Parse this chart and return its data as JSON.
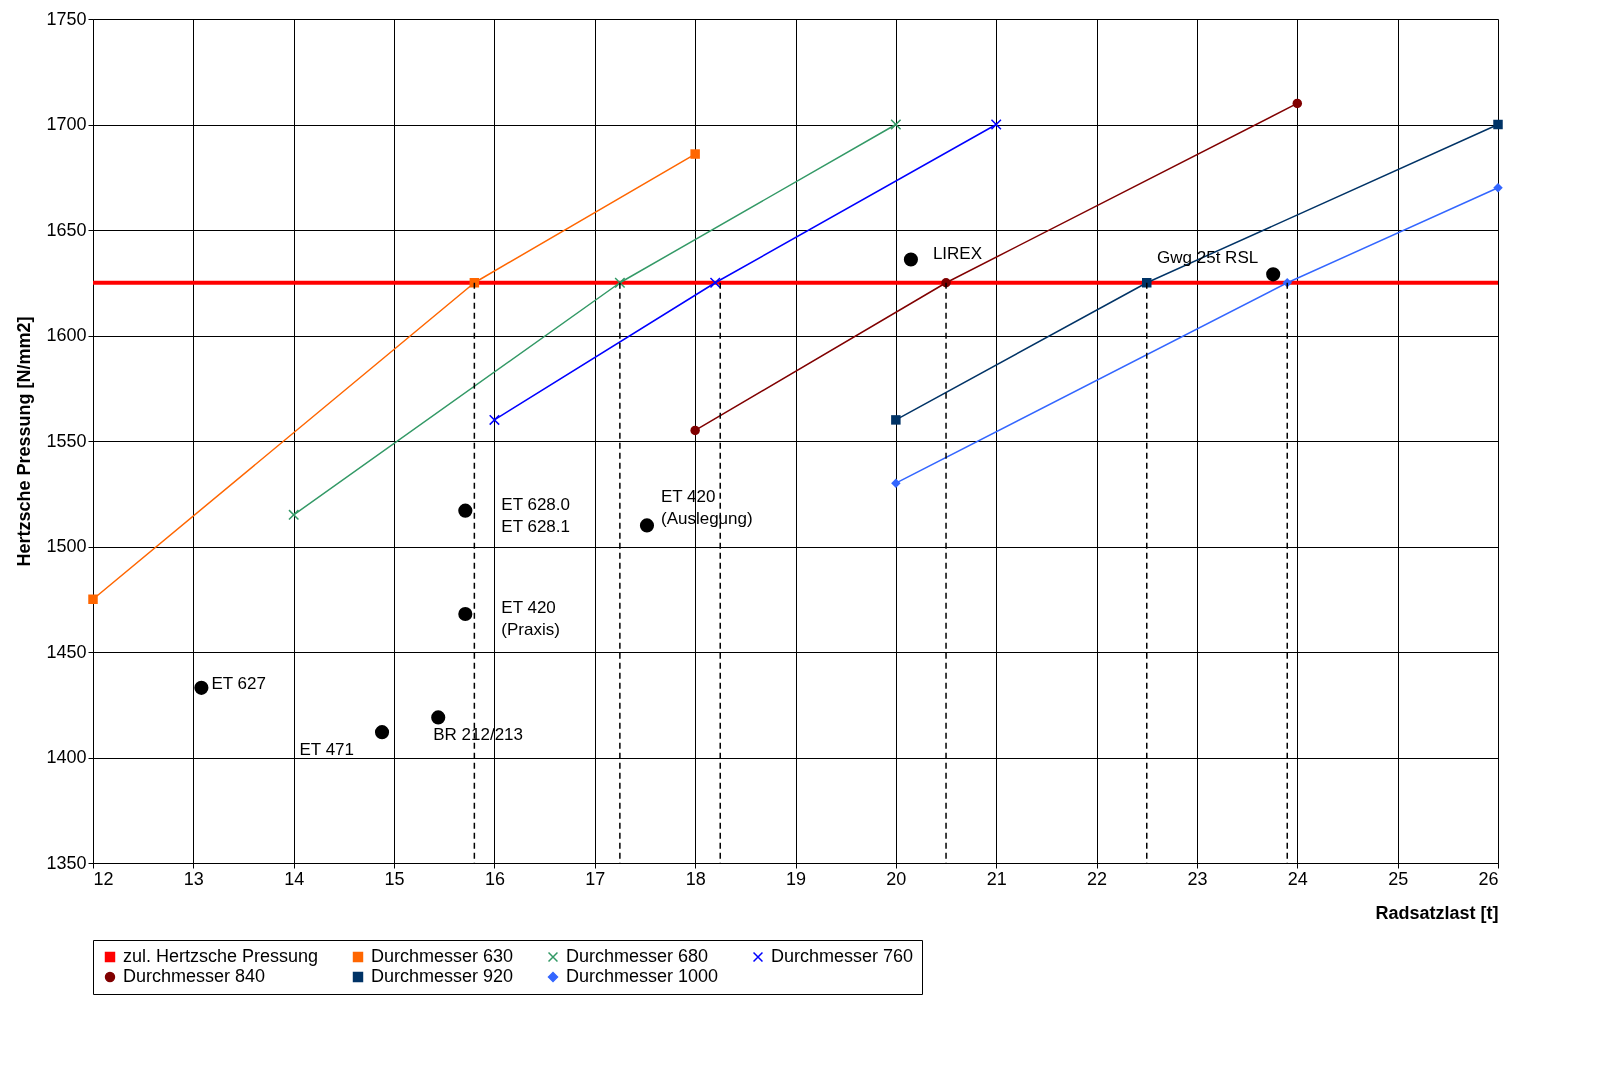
{
  "chart_data": {
    "type": "line",
    "xlabel": "Radsatzlast [t]",
    "ylabel": "Hertzsche Pressung [N/mm2]",
    "xlim": [
      12,
      26
    ],
    "xticks": [
      12,
      13,
      14,
      15,
      16,
      17,
      18,
      19,
      20,
      21,
      22,
      23,
      24,
      25,
      26
    ],
    "ylim": [
      1350,
      1750
    ],
    "yticks": [
      1350,
      1400,
      1450,
      1500,
      1550,
      1600,
      1650,
      1700,
      1750
    ],
    "grid": true,
    "legend": "bottom",
    "line_style": "solid",
    "series": [
      {
        "name": "zul. Hertzsche Pressung",
        "color": "#ff0000",
        "marker": "none",
        "x": [
          12,
          26
        ],
        "values": [
          1625,
          1625
        ]
      },
      {
        "name": "Durchmesser 630",
        "color": "#ff6600",
        "marker": "square",
        "x": [
          12,
          15.8,
          18
        ],
        "values": [
          1475,
          1625,
          1686
        ]
      },
      {
        "name": "Durchmesser 680",
        "color": "#339966",
        "marker": "cross",
        "x": [
          14,
          17.25,
          20
        ],
        "values": [
          1515,
          1625,
          1700
        ]
      },
      {
        "name": "Durchmesser 760",
        "color": "#0000ff",
        "marker": "cross",
        "x": [
          16,
          18.2,
          21
        ],
        "values": [
          1560,
          1625,
          1700
        ]
      },
      {
        "name": "Durchmesser 840",
        "color": "#800000",
        "marker": "circle",
        "x": [
          18,
          20.5,
          24
        ],
        "values": [
          1555,
          1625,
          1710
        ]
      },
      {
        "name": "Durchmesser 920",
        "color": "#003366",
        "marker": "square",
        "x": [
          20,
          22.5,
          26
        ],
        "values": [
          1560,
          1625,
          1700
        ]
      },
      {
        "name": "Durchmesser 1000",
        "color": "#3366ff",
        "marker": "diamond",
        "x": [
          20,
          23.9,
          26
        ],
        "values": [
          1530,
          1625,
          1670
        ]
      },
      {
        "type": "scatter",
        "color": "#000000",
        "marker": "circle",
        "x": [
          13.08,
          14.88,
          15.44,
          15.71,
          15.71,
          17.52,
          20.15,
          23.76
        ],
        "values": [
          1433,
          1412,
          1419,
          1517,
          1468,
          1510,
          1636,
          1629
        ]
      }
    ],
    "ref_lines": [
      {
        "axis": "x",
        "value": 15.8,
        "line_style": "dashed",
        "color": "#000000"
      },
      {
        "axis": "x",
        "value": 17.25,
        "line_style": "dashed",
        "color": "#000000"
      },
      {
        "axis": "x",
        "value": 18.25,
        "line_style": "dashed",
        "color": "#000000"
      },
      {
        "axis": "x",
        "value": 20.5,
        "line_style": "dashed",
        "color": "#000000"
      },
      {
        "axis": "x",
        "value": 22.5,
        "line_style": "dashed",
        "color": "#000000"
      },
      {
        "axis": "x",
        "value": 23.9,
        "line_style": "dashed",
        "color": "#000000"
      }
    ],
    "annotations": [
      {
        "text": "ET 627",
        "x": 13.08,
        "y": 1433
      },
      {
        "text": "ET 471",
        "x": 14.88,
        "y": 1412
      },
      {
        "text": "BR 212/213",
        "x": 15.44,
        "y": 1419
      },
      {
        "text": "ET 628.0\nET 628.1",
        "x": 15.71,
        "y": 1517
      },
      {
        "text": "ET 420\n(Praxis)",
        "x": 15.71,
        "y": 1468
      },
      {
        "text": "ET 420\n(Auslegung)",
        "x": 17.52,
        "y": 1510
      },
      {
        "text": "LIREX",
        "x": 20.15,
        "y": 1636
      },
      {
        "text": "Gwg 25t RSL",
        "x": 23.76,
        "y": 1629
      }
    ]
  }
}
